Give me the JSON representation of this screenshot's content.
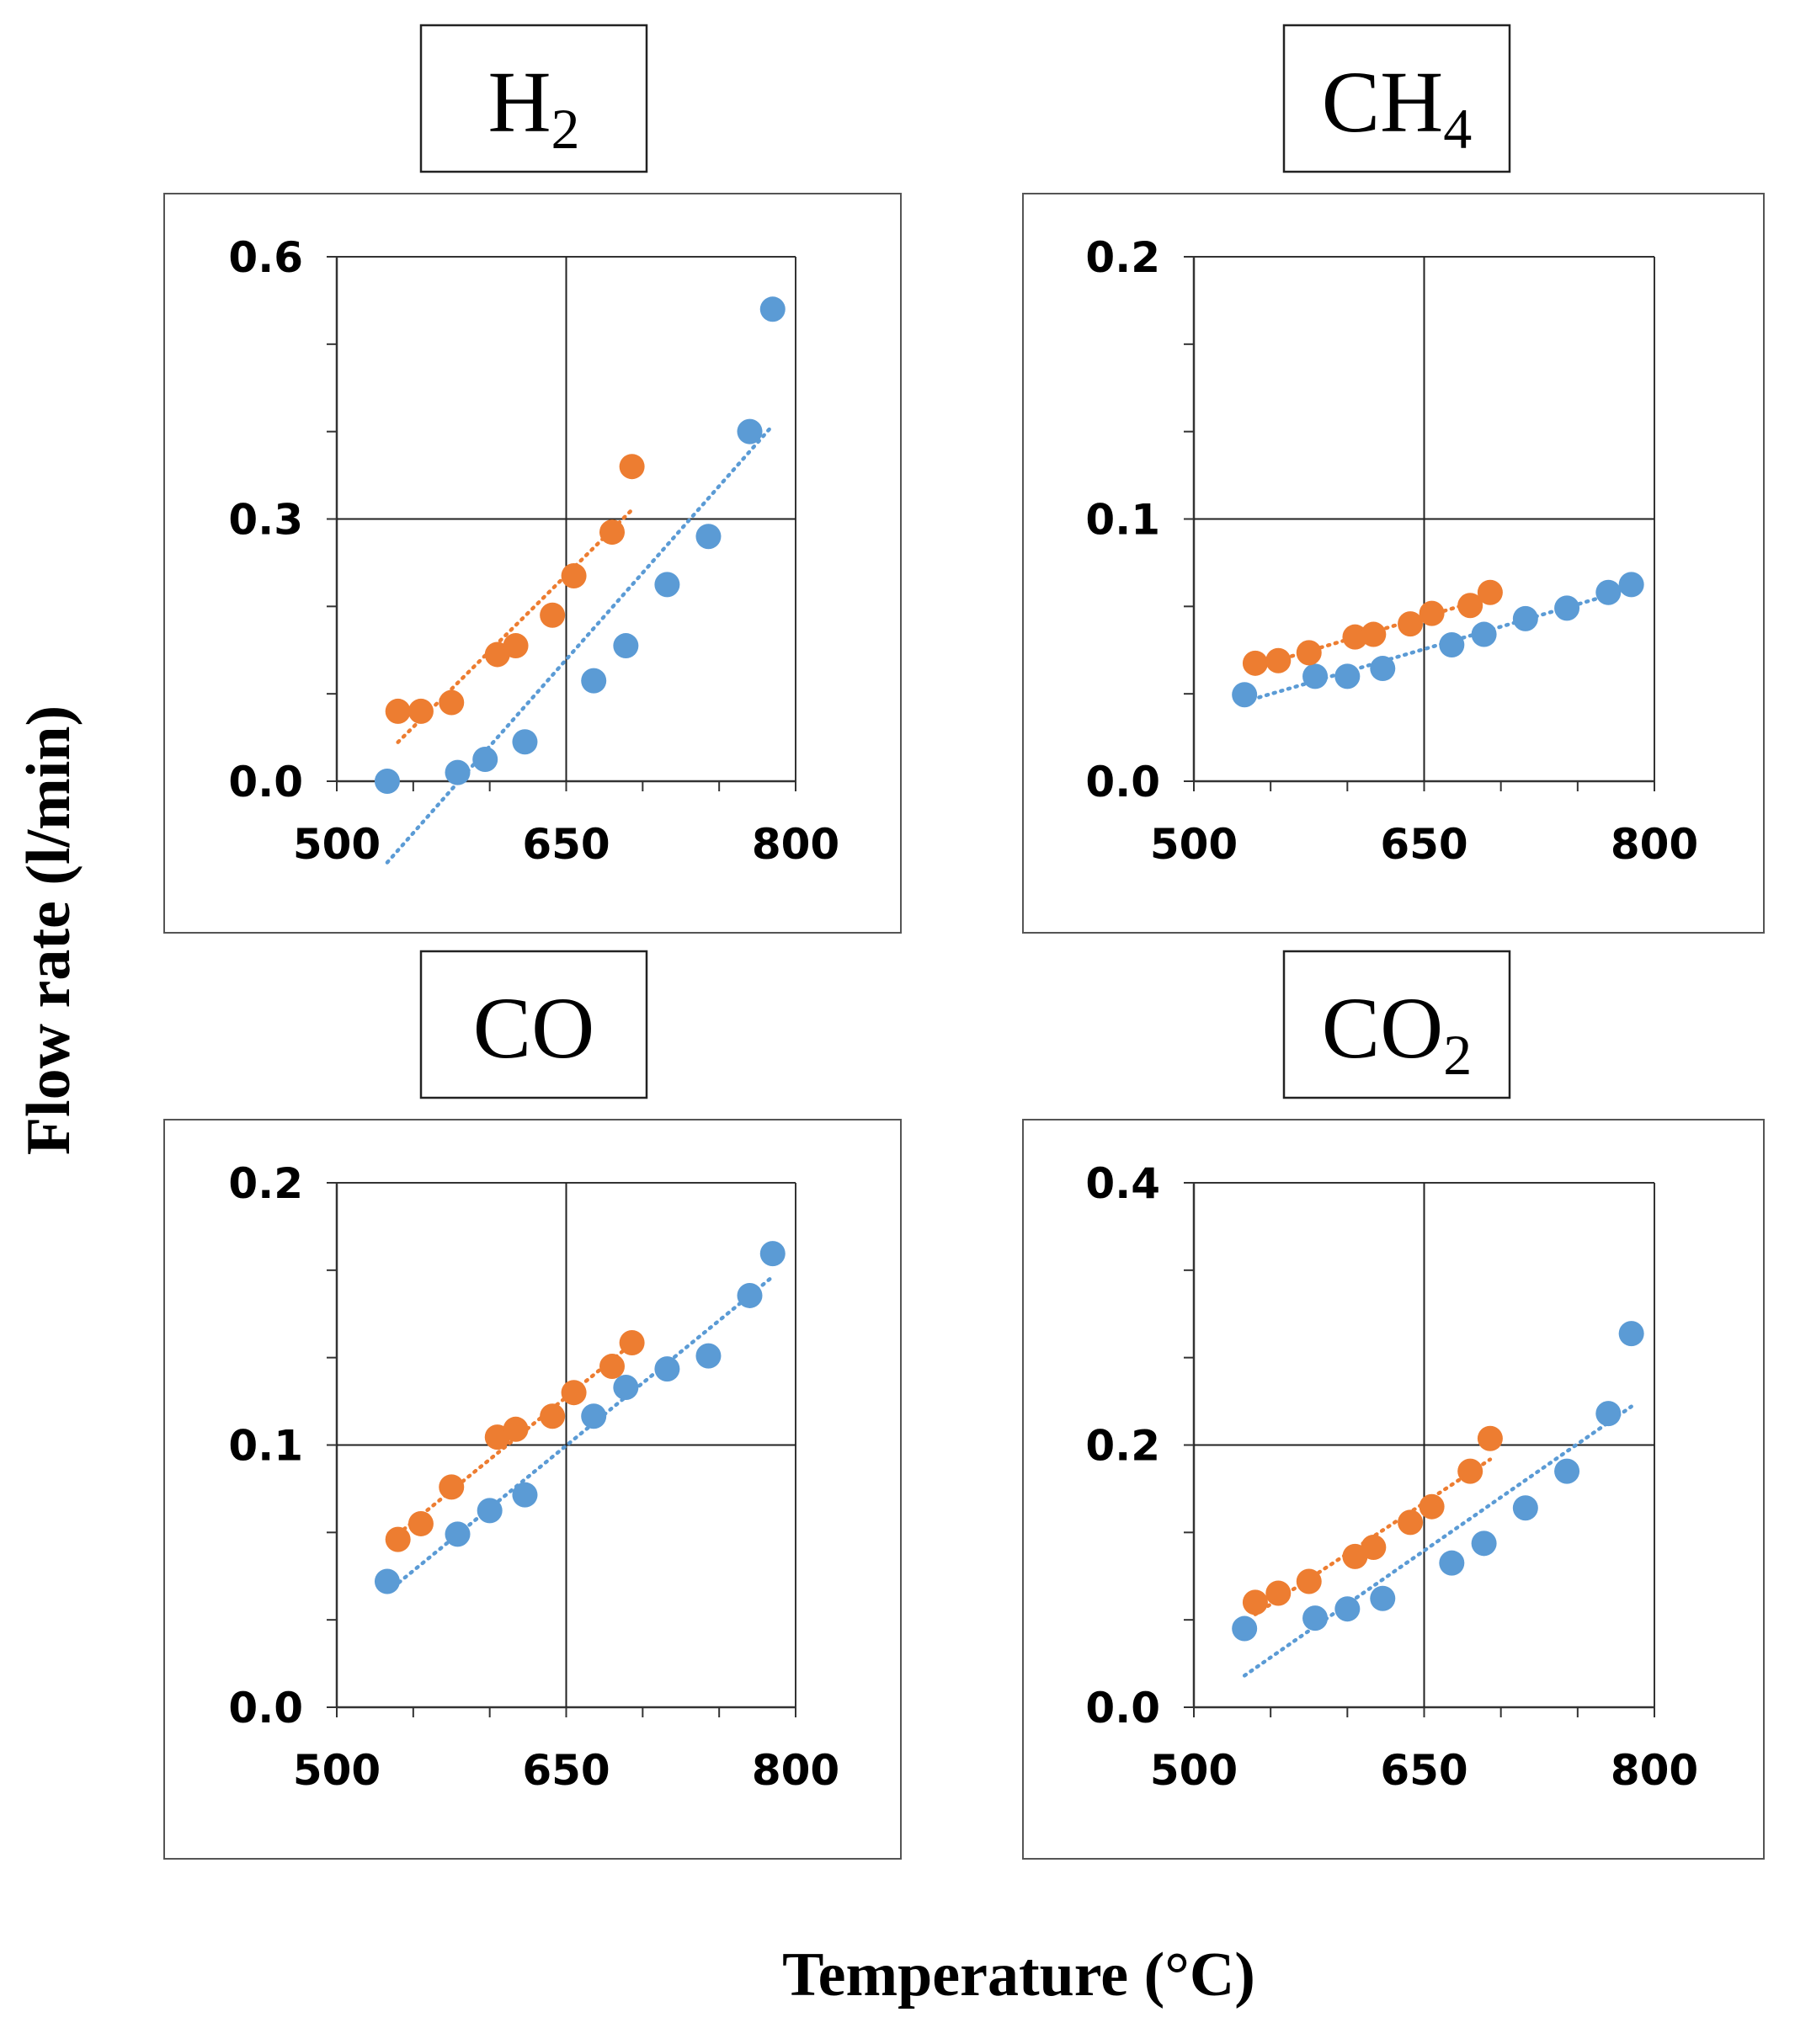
{
  "figure": {
    "ylabel": "Flow rate (l/min)",
    "xlabel": "Temperature (°C)"
  },
  "colors": {
    "series_a": "#5b9bd5",
    "series_b": "#ed7d31"
  },
  "chart_data": [
    {
      "type": "scatter",
      "title": "H2",
      "title_base": "H",
      "title_sub": "2",
      "xlim": [
        500,
        800
      ],
      "ylim": [
        0,
        0.6
      ],
      "xticks": [
        "500",
        "650",
        "800"
      ],
      "yticks": [
        "0.0",
        "0.3",
        "0.6"
      ],
      "grid": true,
      "series": [
        {
          "color": "#5b9bd5",
          "trendline": "linear-dotted",
          "x": [
            533,
            579,
            597,
            623,
            668,
            689,
            716,
            743,
            770,
            785
          ],
          "y": [
            0.0,
            0.01,
            0.025,
            0.045,
            0.115,
            0.155,
            0.225,
            0.28,
            0.4,
            0.54
          ]
        },
        {
          "color": "#ed7d31",
          "trendline": "linear-dotted",
          "x": [
            540,
            555,
            575,
            605,
            617,
            641,
            655,
            680,
            693
          ],
          "y": [
            0.08,
            0.08,
            0.09,
            0.145,
            0.155,
            0.19,
            0.235,
            0.285,
            0.36
          ]
        }
      ]
    },
    {
      "type": "scatter",
      "title": "CH4",
      "title_base": "CH",
      "title_sub": "4",
      "xlim": [
        500,
        800
      ],
      "ylim": [
        0,
        0.2
      ],
      "xticks": [
        "500",
        "650",
        "800"
      ],
      "yticks": [
        "0.0",
        "0.1",
        "0.2"
      ],
      "grid": true,
      "series": [
        {
          "color": "#5b9bd5",
          "trendline": "linear-dotted",
          "x": [
            533,
            579,
            600,
            623,
            668,
            689,
            716,
            743,
            770,
            785
          ],
          "y": [
            0.033,
            0.04,
            0.04,
            0.043,
            0.052,
            0.056,
            0.062,
            0.066,
            0.072,
            0.075
          ]
        },
        {
          "color": "#ed7d31",
          "trendline": "linear-dotted",
          "x": [
            540,
            555,
            575,
            605,
            617,
            641,
            655,
            680,
            693
          ],
          "y": [
            0.045,
            0.046,
            0.049,
            0.055,
            0.056,
            0.06,
            0.064,
            0.067,
            0.072
          ]
        }
      ]
    },
    {
      "type": "scatter",
      "title": "CO",
      "title_base": "CO",
      "title_sub": "",
      "xlim": [
        500,
        800
      ],
      "ylim": [
        0,
        0.2
      ],
      "xticks": [
        "500",
        "650",
        "800"
      ],
      "yticks": [
        "0.0",
        "0.1",
        "0.2"
      ],
      "grid": true,
      "series": [
        {
          "color": "#5b9bd5",
          "trendline": "linear-dotted",
          "x": [
            533,
            579,
            600,
            623,
            668,
            689,
            716,
            743,
            770,
            785
          ],
          "y": [
            0.048,
            0.066,
            0.075,
            0.081,
            0.111,
            0.122,
            0.129,
            0.134,
            0.157,
            0.173
          ]
        },
        {
          "color": "#ed7d31",
          "trendline": "linear-dotted",
          "x": [
            540,
            555,
            575,
            605,
            617,
            641,
            655,
            680,
            693
          ],
          "y": [
            0.064,
            0.07,
            0.084,
            0.103,
            0.106,
            0.111,
            0.12,
            0.13,
            0.139
          ]
        }
      ]
    },
    {
      "type": "scatter",
      "title": "CO2",
      "title_base": "CO",
      "title_sub": "2",
      "xlim": [
        500,
        800
      ],
      "ylim": [
        0,
        0.4
      ],
      "xticks": [
        "500",
        "650",
        "800"
      ],
      "yticks": [
        "0.0",
        "0.2",
        "0.4"
      ],
      "grid": true,
      "series": [
        {
          "color": "#5b9bd5",
          "trendline": "linear-dotted",
          "x": [
            533,
            579,
            600,
            623,
            668,
            689,
            716,
            743,
            770,
            785
          ],
          "y": [
            0.06,
            0.068,
            0.075,
            0.083,
            0.11,
            0.125,
            0.152,
            0.18,
            0.224,
            0.285
          ]
        },
        {
          "color": "#ed7d31",
          "trendline": "linear-dotted",
          "x": [
            540,
            555,
            575,
            605,
            617,
            641,
            655,
            680,
            693
          ],
          "y": [
            0.08,
            0.087,
            0.096,
            0.115,
            0.122,
            0.141,
            0.153,
            0.18,
            0.205
          ]
        }
      ]
    }
  ]
}
